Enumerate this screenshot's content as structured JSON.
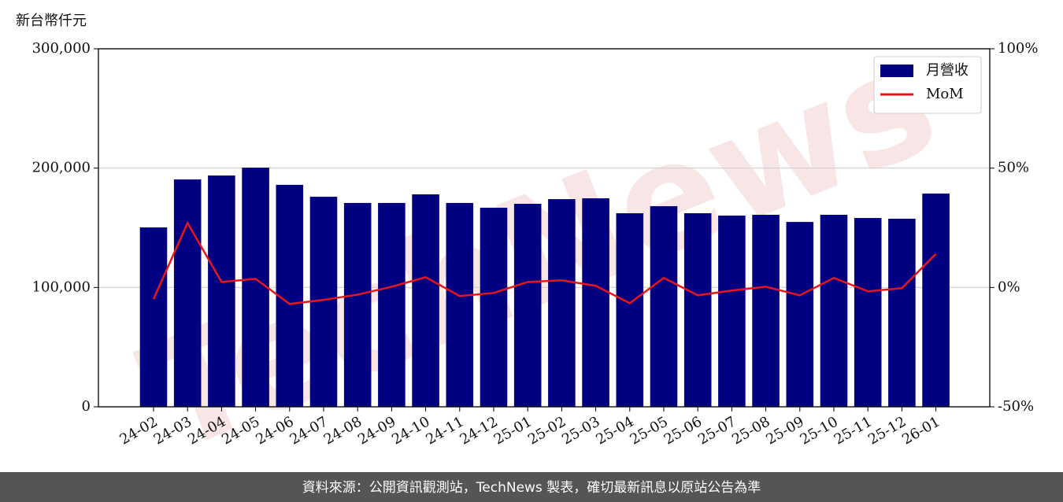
{
  "chart_data": {
    "type": "bar_line",
    "y_label": "新台幣仟元",
    "watermark": "TechNews",
    "source": "資料來源：公開資訊觀測站，TechNews 製表，確切最新訊息以原站公告為準",
    "categories": [
      "24-02",
      "24-03",
      "24-04",
      "24-05",
      "24-06",
      "24-07",
      "24-08",
      "24-09",
      "24-10",
      "24-11",
      "24-12",
      "25-01",
      "25-02",
      "25-03",
      "25-04",
      "25-05",
      "25-06",
      "25-07",
      "25-08",
      "25-09",
      "25-10",
      "25-11",
      "25-12",
      "26-01"
    ],
    "series": [
      {
        "name": "月營收",
        "type": "bar",
        "color": "#000080",
        "values": [
          150300,
          190500,
          193800,
          200400,
          186000,
          176000,
          170800,
          170800,
          178000,
          170800,
          166800,
          170100,
          174000,
          174700,
          162200,
          168100,
          162200,
          160200,
          160900,
          154900,
          160900,
          158200,
          157600,
          178700
        ]
      },
      {
        "name": "MoM",
        "type": "line",
        "axis": "y2",
        "color": "#e8161b",
        "values": [
          -4.9,
          27,
          2.3,
          3.6,
          -6.9,
          -5.2,
          -3,
          0.3,
          4.3,
          -3.6,
          -2.3,
          2.3,
          3,
          0.7,
          -6.6,
          4,
          -3.3,
          -1.3,
          0.3,
          -3.3,
          4,
          -1.6,
          -0.3,
          14.1
        ]
      }
    ],
    "ylim": [
      0,
      300000
    ],
    "yticks": [
      0,
      {
        "value": 100000,
        "label": "100,000"
      },
      {
        "value": 200000,
        "label": "200,000"
      },
      {
        "value": 300000,
        "label": "300,000"
      }
    ],
    "y2lim": [
      -50,
      100
    ],
    "y2ticks": [
      {
        "value": -50,
        "label": "-50%"
      },
      {
        "value": 0,
        "label": "0%"
      },
      {
        "value": 50,
        "label": "50%"
      },
      {
        "value": 100,
        "label": "100%"
      }
    ],
    "grid": true,
    "legend": "upper right"
  }
}
